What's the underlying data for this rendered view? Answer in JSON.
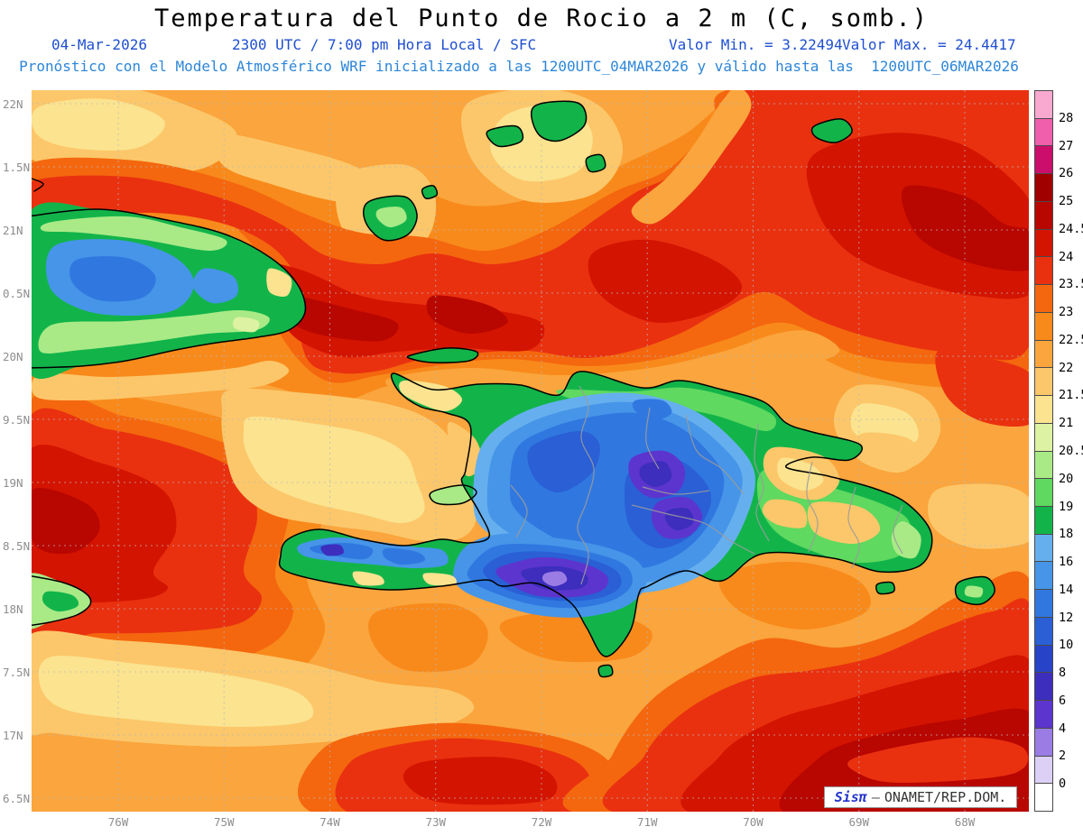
{
  "title": "Temperatura del Punto de Rocio a 2 m (C, somb.)",
  "header": {
    "date": "04-Mar-2026",
    "time": "2300 UTC / 7:00 pm Hora Local / SFC",
    "min_label": "Valor Min. = 3.22494",
    "max_label": "Valor Max. = 24.4417",
    "model_line": "Pronóstico con el Modelo Atmosférico WRF inicializado a las 1200UTC_04MAR2026 y válido hasta las  1200UTC_06MAR2026"
  },
  "credit": {
    "brand": "Sisπ",
    "separator": "–",
    "org": "ONAMET/REP.DOM."
  },
  "axes": {
    "lat_labels": [
      "22N",
      "1.5N",
      "21N",
      "0.5N",
      "20N",
      "9.5N",
      "19N",
      "8.5N",
      "18N",
      "7.5N",
      "17N",
      "6.5N"
    ],
    "lon_labels": [
      "76W",
      "75W",
      "74W",
      "73W",
      "72W",
      "71W",
      "70W",
      "69W",
      "68W"
    ]
  },
  "colors": {
    "header_blue": "#1F4FD0",
    "model_blue": "#2E86D8",
    "axis_label_gray": "#8E8E8E",
    "credit_blue": "#2233CC",
    "coastline": "#000000",
    "admin_border": "#9B9B9B",
    "grid": "#B8B8B8"
  },
  "chart_data": {
    "type": "heatmap",
    "title": "Temperatura del Punto de Rocio a 2 m (C, somb.)",
    "variable": "Dew point temperature at 2 m",
    "units": "C",
    "valid": "04-Mar-2026 2300 UTC / 7:00 pm Hora Local / SFC",
    "model": "WRF inicializado 1200UTC_04MAR2026, válido hasta 1200UTC_06MAR2026",
    "value_min": 3.22494,
    "value_max": 24.4417,
    "lon_ticks_deg_w": [
      76,
      75,
      74,
      73,
      72,
      71,
      70,
      69,
      68
    ],
    "lat_ticks_deg_n": [
      22,
      21.5,
      21,
      20.5,
      20,
      19.5,
      19,
      18.5,
      18,
      17.5,
      17,
      16.5
    ],
    "levels": [
      0,
      2,
      4,
      6,
      8,
      10,
      12,
      14,
      16,
      18,
      19,
      20,
      20.5,
      21,
      21.5,
      22,
      22.5,
      23,
      23.5,
      24,
      24.5,
      25,
      26,
      27,
      28
    ],
    "legend_labels_top_to_bottom": [
      "28",
      "27",
      "26",
      "25",
      "24.5",
      "24",
      "23.5",
      "23",
      "22.5",
      "22",
      "21.5",
      "21",
      "20.5",
      "20",
      "19",
      "18",
      "16",
      "14",
      "12",
      "10",
      "8",
      "6",
      "4",
      "2",
      "0"
    ],
    "palette": [
      {
        "range": "< 0",
        "color": "#FFFFFF"
      },
      {
        "range": "0-2",
        "color": "#DCD0F6"
      },
      {
        "range": "2-4",
        "color": "#9B7CE4"
      },
      {
        "range": "4-6",
        "color": "#5C35CE"
      },
      {
        "range": "6-8",
        "color": "#3D2EBD"
      },
      {
        "range": "8-10",
        "color": "#2744C8"
      },
      {
        "range": "10-12",
        "color": "#2A5FD6"
      },
      {
        "range": "12-14",
        "color": "#3078E0"
      },
      {
        "range": "14-16",
        "color": "#4695E8"
      },
      {
        "range": "16-18",
        "color": "#66AFEE"
      },
      {
        "range": "18-19",
        "color": "#12B44A"
      },
      {
        "range": "19-20",
        "color": "#5FD95F"
      },
      {
        "range": "20-20.5",
        "color": "#A9EA87"
      },
      {
        "range": "20.5-21",
        "color": "#DDF2A2"
      },
      {
        "range": "21-21.5",
        "color": "#FBE38F"
      },
      {
        "range": "21.5-22",
        "color": "#FCC76A"
      },
      {
        "range": "22-22.5",
        "color": "#FAA53D"
      },
      {
        "range": "22.5-23",
        "color": "#F88A1B"
      },
      {
        "range": "23-23.5",
        "color": "#F4670E"
      },
      {
        "range": "23.5-24",
        "color": "#E93110"
      },
      {
        "range": "24-24.5",
        "color": "#D31400"
      },
      {
        "range": "24.5-25",
        "color": "#B80600"
      },
      {
        "range": "25-26",
        "color": "#A00000"
      },
      {
        "range": "26-27",
        "color": "#CB0E6B"
      },
      {
        "range": "27-28",
        "color": "#EF5FAC"
      },
      {
        "range": "> 28",
        "color": "#F9A8D0"
      }
    ]
  }
}
